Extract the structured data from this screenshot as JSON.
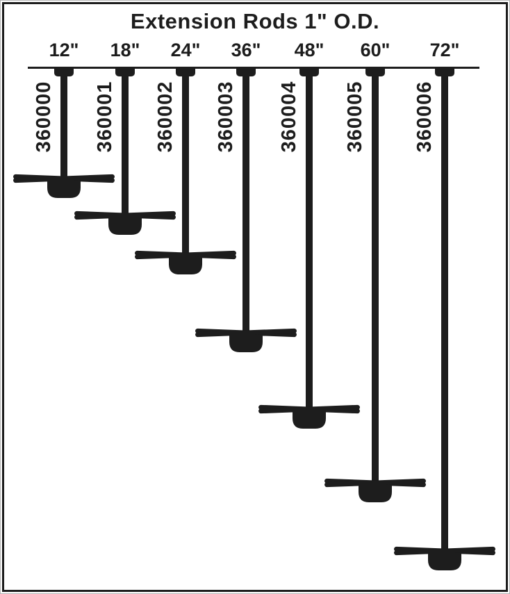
{
  "title": "Extension Rods 1\" O.D.",
  "diagram": {
    "description": "Seven ceiling-fan extension downrods hanging from a ceiling line, drawn progressively longer left to right, each ending in a fan blades-and-motor glyph",
    "colors": {
      "ink": "#1d1d1d",
      "background": "#ffffff"
    },
    "rods": [
      {
        "length_label": "12\"",
        "length_inches": 12,
        "part_number": "360000"
      },
      {
        "length_label": "18\"",
        "length_inches": 18,
        "part_number": "360001"
      },
      {
        "length_label": "24\"",
        "length_inches": 24,
        "part_number": "360002"
      },
      {
        "length_label": "36\"",
        "length_inches": 36,
        "part_number": "360003"
      },
      {
        "length_label": "48\"",
        "length_inches": 48,
        "part_number": "360004"
      },
      {
        "length_label": "60\"",
        "length_inches": 60,
        "part_number": "360005"
      },
      {
        "length_label": "72\"",
        "length_inches": 72,
        "part_number": "360006"
      }
    ]
  }
}
